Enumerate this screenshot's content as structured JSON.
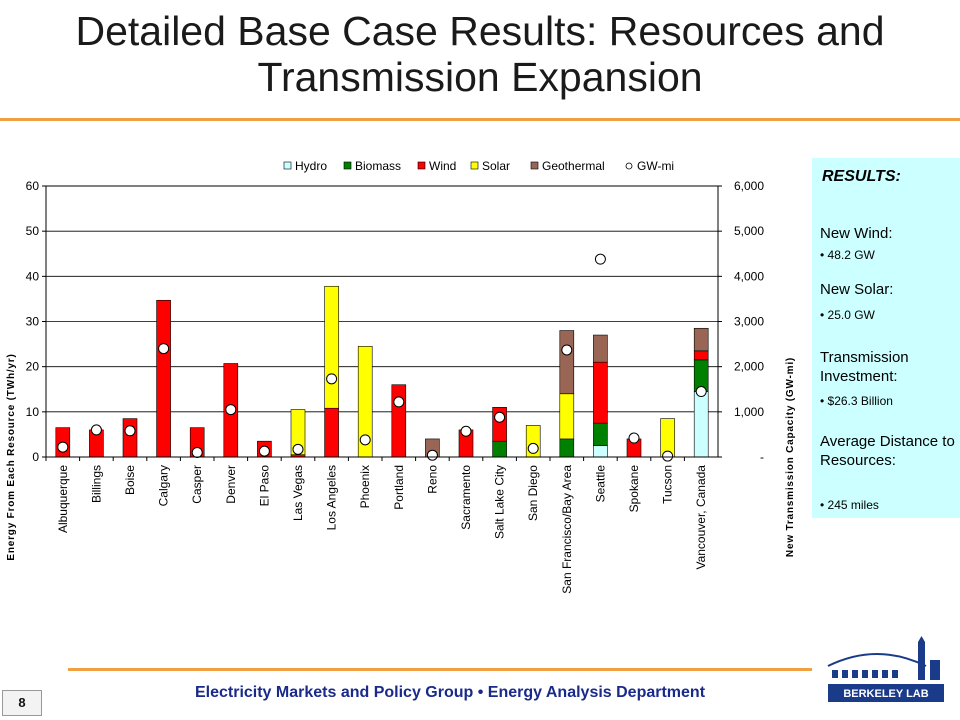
{
  "slide": {
    "title": "Detailed Base Case Results: Resources and Transmission Expansion",
    "footer": "Electricity Markets and Policy Group • Energy Analysis Department",
    "page_number": "8",
    "logo_text": "BERKELEY LAB"
  },
  "results": {
    "heading": "RESULTS:",
    "wind_label": "New Wind:",
    "wind_value": "• 48.2 GW",
    "solar_label": "New Solar:",
    "solar_value": "• 25.0 GW",
    "transmission_label": "Transmission Investment:",
    "transmission_value": "• $26.3 Billion",
    "distance_label": "Average Distance to Resources:",
    "distance_value": "• 245 miles"
  },
  "chart_data": {
    "type": "bar",
    "stacked": true,
    "ylabel": "Energy From Each Resource (TWh/yr)",
    "y2label": "New Transmission Capacity (GW-mi)",
    "ylim": [
      0,
      60
    ],
    "y_ticks": [
      "0",
      "10",
      "20",
      "30",
      "40",
      "50",
      "60"
    ],
    "y2lim": [
      0,
      6000
    ],
    "y2_ticks": [
      "-",
      "1,000",
      "2,000",
      "3,000",
      "4,000",
      "5,000",
      "6,000"
    ],
    "grid": true,
    "legend_position": "top",
    "categories": [
      "Albuquerque",
      "Billings",
      "Boise",
      "Calgary",
      "Casper",
      "Denver",
      "El Paso",
      "Las Vegas",
      "Los Angeles",
      "Phoenix",
      "Portland",
      "Reno",
      "Sacramento",
      "Salt Lake City",
      "San Diego",
      "San Francisco/Bay Area",
      "Seattle",
      "Spokane",
      "Tucson",
      "Vancouver, Canada"
    ],
    "series": [
      {
        "name": "Hydro",
        "color": "#ccffff",
        "values": [
          0,
          0,
          0,
          0,
          0,
          0,
          0,
          0,
          0,
          0,
          0,
          0,
          0,
          0,
          0,
          0,
          2.5,
          0,
          0,
          14.5
        ]
      },
      {
        "name": "Biomass",
        "color": "#008000",
        "values": [
          0,
          0,
          0,
          0,
          0,
          0,
          0,
          0,
          0,
          0,
          0,
          0,
          0,
          3.5,
          0,
          4,
          5,
          0,
          0,
          7
        ]
      },
      {
        "name": "Wind",
        "color": "#ff0000",
        "values": [
          6.5,
          6,
          8.5,
          34.7,
          6.5,
          20.7,
          3.5,
          0.5,
          10.8,
          0,
          16,
          0,
          6,
          7.5,
          0,
          0,
          13.5,
          4,
          0,
          2
        ]
      },
      {
        "name": "Solar",
        "color": "#ffff00",
        "values": [
          0,
          0,
          0,
          0,
          0,
          0,
          0,
          10,
          27,
          24.5,
          0,
          0,
          0,
          0,
          7,
          10,
          0,
          0,
          8.5,
          0
        ]
      },
      {
        "name": "Geothermal",
        "color": "#996655",
        "values": [
          0,
          0,
          0,
          0,
          0,
          0,
          0,
          0,
          0,
          0,
          0,
          4,
          0,
          0,
          0,
          14,
          6,
          0,
          0,
          5
        ]
      }
    ],
    "points": {
      "name": "GW-mi",
      "values": [
        220,
        600,
        580,
        2400,
        100,
        1050,
        130,
        170,
        1730,
        380,
        1220,
        40,
        570,
        880,
        190,
        2370,
        4380,
        420,
        20,
        1450
      ]
    }
  }
}
